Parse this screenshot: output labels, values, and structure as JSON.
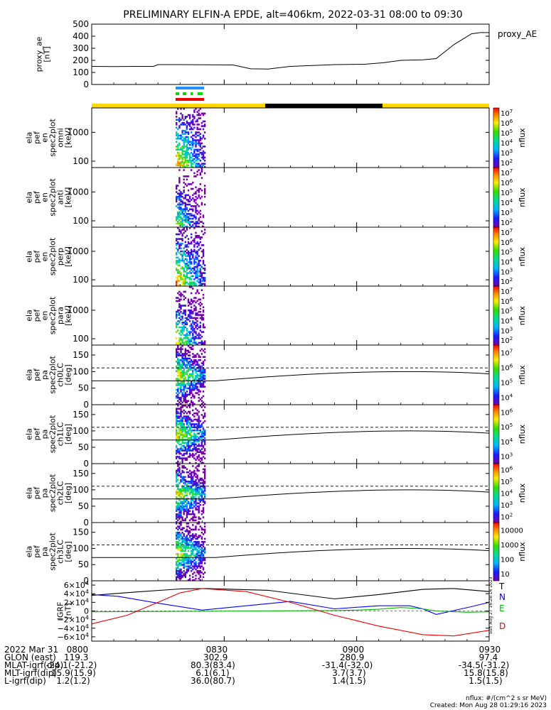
{
  "title": "PRELIMINARY ELFIN-A EPDE, alt=406km, 2022-03-31 08:00 to 09:30",
  "colors": {
    "sun_bar": "#ffd700",
    "shadow_bar": "#000000",
    "line_T": "#000000",
    "line_N": "#0000ff",
    "line_E": "#00bb00",
    "line_D": "#ee0000",
    "quality_blue": "#1e90ff",
    "quality_green": "#00dd00",
    "quality_red": "#ee0000"
  },
  "chart_data": {
    "type": "multi-panel time series and spectrograms",
    "time_range": [
      "2022-03-31 08:00",
      "2022-03-31 09:30"
    ],
    "x_ticks": [
      "0800",
      "0830",
      "0900",
      "0930"
    ],
    "panels": [
      {
        "id": "proxy_ae",
        "type": "line",
        "ylabel": "proxy_ae\n[nT]",
        "right_label": "proxy_AE",
        "ylim": [
          0,
          500
        ],
        "yticks": [
          "0",
          "100",
          "200",
          "300",
          "400",
          "500"
        ],
        "x_min": [
          0,
          5,
          10,
          14,
          15,
          20,
          32,
          36,
          40,
          45,
          55,
          62,
          66,
          70,
          75,
          78,
          82,
          86,
          88,
          90
        ],
        "y": [
          150,
          148,
          150,
          150,
          165,
          165,
          162,
          130,
          128,
          150,
          165,
          168,
          180,
          200,
          205,
          215,
          330,
          420,
          430,
          430
        ]
      },
      {
        "id": "ela_pef_en_spec2plot_omni",
        "type": "heatmap",
        "ylabel": "ela\npef\nen\nspec2plot\nomni\n[keV]",
        "yscale": "log",
        "yticks": [
          "100",
          "1000"
        ],
        "ylim": [
          60,
          7000
        ],
        "zlabel": "nflux",
        "zscale": "log",
        "zlim": [
          100,
          10000000
        ],
        "zticks": [
          "10^2",
          "10^3",
          "10^4",
          "10^5",
          "10^6",
          "10^7"
        ],
        "active_time_min": [
          19.0,
          25.5
        ]
      },
      {
        "id": "ela_pef_en_spec2plot_anti",
        "type": "heatmap",
        "ylabel": "ela\npef\nen\nspec2plot\nanti\n[keV]",
        "yscale": "log",
        "yticks": [
          "100",
          "1000"
        ],
        "ylim": [
          60,
          7000
        ],
        "zlabel": "nflux",
        "zscale": "log",
        "zlim": [
          100,
          10000000
        ],
        "zticks": [
          "10^2",
          "10^3",
          "10^4",
          "10^5",
          "10^6",
          "10^7"
        ],
        "active_time_min": [
          19.0,
          25.5
        ]
      },
      {
        "id": "ela_pef_en_spec2plot_perp",
        "type": "heatmap",
        "ylabel": "ela\npef\nen\nspec2plot\nperp\n[keV]",
        "yscale": "log",
        "yticks": [
          "100",
          "1000"
        ],
        "ylim": [
          60,
          7000
        ],
        "zlabel": "nflux",
        "zscale": "log",
        "zlim": [
          100,
          10000000
        ],
        "zticks": [
          "10^2",
          "10^3",
          "10^4",
          "10^5",
          "10^6",
          "10^7"
        ],
        "active_time_min": [
          19.0,
          25.5
        ]
      },
      {
        "id": "ela_pef_en_spec2plot_para",
        "type": "heatmap",
        "ylabel": "ela\npef\nen\nspec2plot\npara\n[keV]",
        "yscale": "log",
        "yticks": [
          "100",
          "1000"
        ],
        "ylim": [
          60,
          7000
        ],
        "zlabel": "nflux",
        "zscale": "log",
        "zlim": [
          100,
          10000000
        ],
        "zticks": [
          "10^2",
          "10^3",
          "10^4",
          "10^5",
          "10^6",
          "10^7"
        ],
        "active_time_min": [
          19.0,
          25.5
        ]
      },
      {
        "id": "ela_pef_pa_spec2plot_ch0LC",
        "type": "heatmap",
        "ylabel": "ela\npef\npa\nspec2plot\nch0LC\n[deg]",
        "yscale": "linear",
        "yticks": [
          "0",
          "50",
          "100",
          "150"
        ],
        "ylim": [
          0,
          180
        ],
        "zlabel": "nflux",
        "zscale": "log",
        "zlim": [
          1000,
          10000000
        ],
        "zticks": [
          "10^4",
          "10^5",
          "10^6",
          "10^7"
        ],
        "active_time_min": [
          19.0,
          25.5
        ]
      },
      {
        "id": "ela_pef_pa_spec2plot_ch1LC",
        "type": "heatmap",
        "ylabel": "ela\npef\npa\nspec2plot\nch1LC\n[deg]",
        "yscale": "linear",
        "yticks": [
          "0",
          "50",
          "100",
          "150"
        ],
        "ylim": [
          0,
          180
        ],
        "zlabel": "nflux",
        "zscale": "log",
        "zlim": [
          1000,
          10000000
        ],
        "zticks": [
          "10^3",
          "10^4",
          "10^5",
          "10^6"
        ],
        "active_time_min": [
          19.0,
          25.5
        ]
      },
      {
        "id": "ela_pef_pa_spec2plot_ch2LC",
        "type": "heatmap",
        "ylabel": "ela\npef\npa\nspec2plot\nch2LC\n[deg]",
        "yscale": "linear",
        "yticks": [
          "0",
          "50",
          "100",
          "150"
        ],
        "ylim": [
          0,
          180
        ],
        "zlabel": "nflux",
        "zscale": "log",
        "zlim": [
          100,
          1000000
        ],
        "zticks": [
          "10^2",
          "10^3",
          "10^4",
          "10^5",
          "10^6"
        ],
        "active_time_min": [
          19.0,
          25.5
        ]
      },
      {
        "id": "ela_pef_pa_spec2plot_ch3LC",
        "type": "heatmap",
        "ylabel": "ela\npef\npa\nspec2plot\nch3LC\n[deg]",
        "yscale": "linear",
        "yticks": [
          "0",
          "50",
          "100",
          "150"
        ],
        "ylim": [
          0,
          180
        ],
        "zlabel": "nflux",
        "zscale": "log",
        "zlim": [
          10,
          10000
        ],
        "zticks": [
          "10",
          "100",
          "1000",
          "10000"
        ],
        "active_time_min": [
          19.0,
          25.5
        ]
      },
      {
        "id": "igrf",
        "type": "line",
        "ylabel": "IGRF\n[nT]",
        "ylim": [
          -70000,
          70000
        ],
        "yticks": [
          "-6x10^4",
          "-4x10^4",
          "-2x10^4",
          "0",
          "2x10^4",
          "4x10^4",
          "6x10^4"
        ],
        "series": [
          {
            "name": "T",
            "x_min": [
              0,
              10,
              20,
              26,
              40,
              55,
              65,
              75,
              82,
              90
            ],
            "values": [
              36000,
              44000,
              51000,
              52000,
              48000,
              28000,
              38000,
              50000,
              52000,
              45000
            ]
          },
          {
            "name": "N",
            "x_min": [
              0,
              6,
              15,
              25,
              45,
              55,
              65,
              72,
              75,
              78,
              86,
              90
            ],
            "values": [
              38000,
              34000,
              18000,
              2000,
              22000,
              5000,
              12000,
              12000,
              5000,
              -8000,
              10000,
              20000
            ]
          },
          {
            "name": "E",
            "x_min": [
              0,
              20,
              40,
              55,
              60,
              65,
              70,
              75,
              78,
              85,
              90
            ],
            "values": [
              -2000,
              -1000,
              0,
              1000,
              2000,
              4000,
              8000,
              5000,
              0,
              -3000,
              -2000
            ]
          },
          {
            "name": "D",
            "x_min": [
              0,
              8,
              15,
              20,
              25,
              35,
              45,
              55,
              65,
              75,
              82,
              90
            ],
            "values": [
              -30000,
              -10000,
              20000,
              42000,
              52000,
              45000,
              20000,
              -10000,
              -35000,
              -55000,
              -58000,
              -45000
            ]
          }
        ]
      }
    ],
    "pa_reference_lines": {
      "dashed": 111,
      "solid_start": 72,
      "solid_mid": 108,
      "solid_end": 93
    }
  },
  "side_label": "Sun Aug 27 16:28:16 2023",
  "footer": {
    "rows": [
      {
        "label": "2022 Mar 31",
        "values": [
          "0800",
          "0830",
          "0900",
          "0930"
        ]
      },
      {
        "label": "GLON (east)",
        "values": [
          "119.3",
          "302.9",
          "280.9",
          "97.4"
        ]
      },
      {
        "label": "MLAT-igrf(dip)",
        "values": [
          "-24.1(-21.2)",
          "80.3(83.4)",
          "-31.4(-32.0)",
          "-34.5(-31.2)"
        ]
      },
      {
        "label": "MLT-igrf(dip)",
        "values": [
          "15.9(15.9)",
          "6.1(6.1)",
          "3.7(3.7)",
          "15.8(15.8)"
        ]
      },
      {
        "label": "L-igrf(dip)",
        "values": [
          "1.2(1.2)",
          "36.0(80.7)",
          "1.4(1.5)",
          "1.5(1.5)"
        ]
      }
    ],
    "units_note": "nflux: #/(cm^2 s sr MeV)",
    "created": "Created: Mon Aug 28 01:29:16 2023"
  }
}
